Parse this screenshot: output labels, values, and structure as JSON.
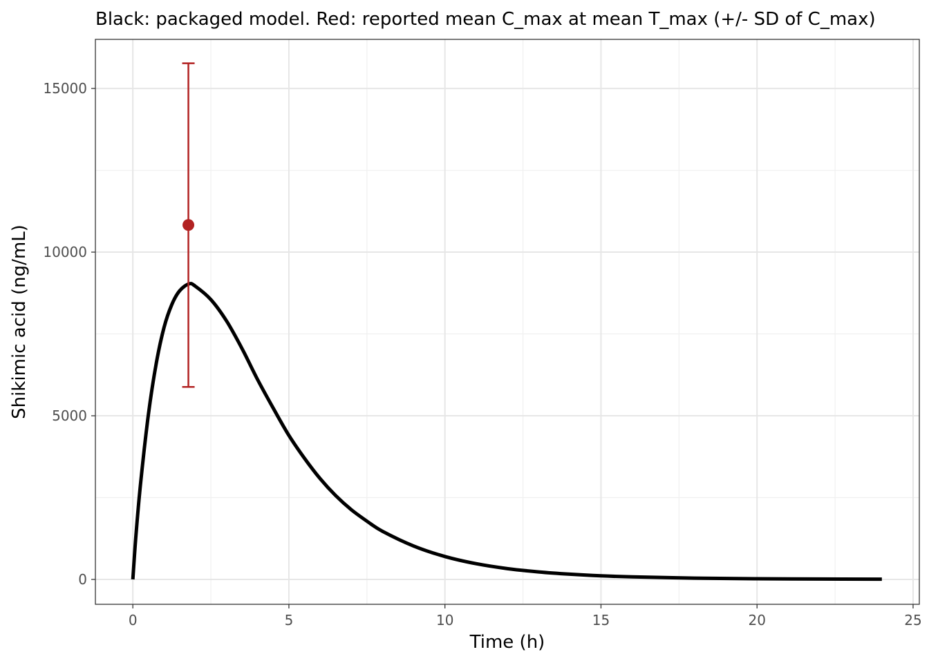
{
  "chart_data": {
    "type": "line",
    "title": "Black: packaged model. Red: reported mean C_max at mean T_max (+/- SD of C_max)",
    "xlabel": "Time (h)",
    "ylabel": "Shikimic acid (ng/mL)",
    "xlim": [
      -1.2,
      25.2
    ],
    "ylim": [
      -760,
      16500
    ],
    "x_ticks": [
      0,
      5,
      10,
      15,
      20,
      25
    ],
    "x_tick_labels": [
      "0",
      "5",
      "10",
      "15",
      "20",
      "25"
    ],
    "y_ticks": [
      0,
      5000,
      10000,
      15000
    ],
    "y_tick_labels": [
      "0",
      "5000",
      "10000",
      "15000"
    ],
    "grid": true,
    "series": [
      {
        "name": "packaged model",
        "color": "#000000",
        "x": [
          0,
          0.1,
          0.25,
          0.5,
          0.75,
          1.0,
          1.25,
          1.5,
          1.8,
          2.0,
          2.5,
          3.0,
          3.5,
          4.0,
          4.5,
          5.0,
          5.5,
          6.0,
          6.5,
          7.0,
          7.5,
          8.0,
          9.0,
          10.0,
          11.0,
          12.0,
          13.0,
          14.0,
          15.0,
          16.0,
          18.0,
          20.0,
          22.0,
          24.0
        ],
        "y": [
          0,
          1350,
          2950,
          5050,
          6600,
          7700,
          8400,
          8820,
          9030,
          8960,
          8550,
          7900,
          7050,
          6100,
          5230,
          4400,
          3700,
          3080,
          2560,
          2130,
          1780,
          1470,
          1020,
          700,
          480,
          330,
          230,
          160,
          110,
          78,
          40,
          21,
          12,
          8
        ]
      }
    ],
    "reported_point": {
      "name": "reported mean C_max at mean T_max",
      "color": "#B22222",
      "x": 1.78,
      "y": 10830,
      "sd_lower": 5880,
      "sd_upper": 15770
    }
  }
}
